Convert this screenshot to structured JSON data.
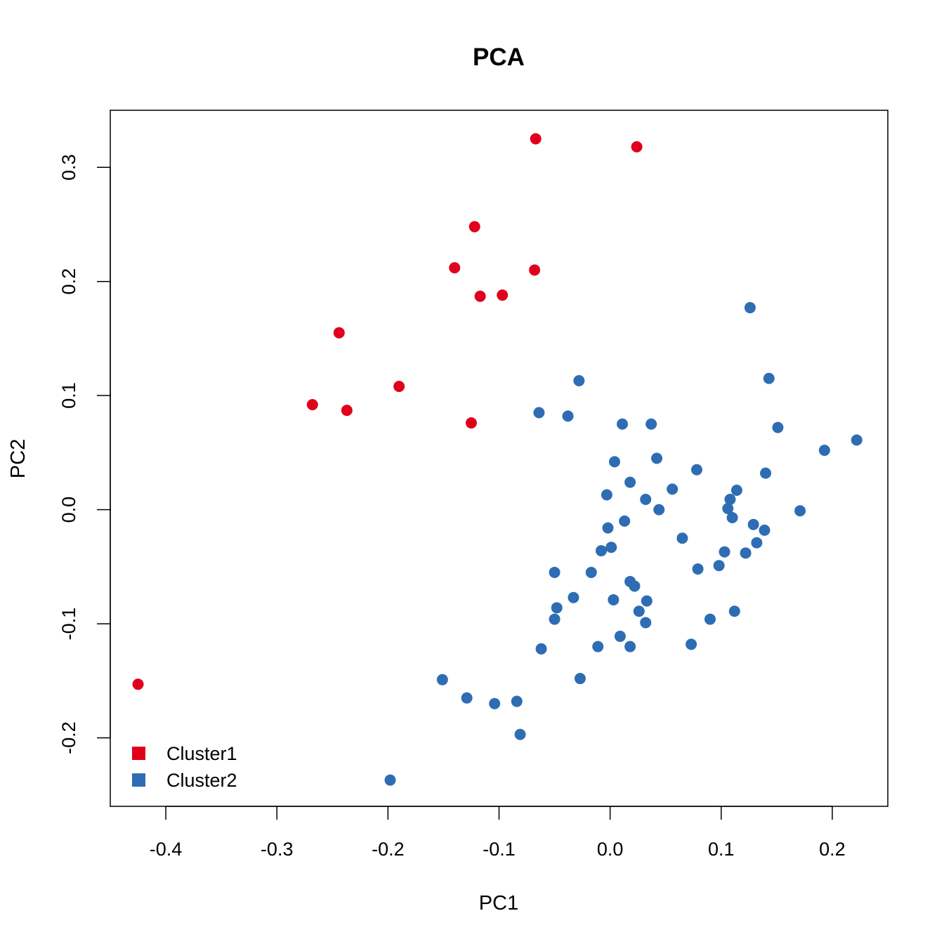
{
  "chart_data": {
    "type": "scatter",
    "title": "PCA",
    "xlabel": "PC1",
    "ylabel": "PC2",
    "xlim": [
      -0.45,
      0.25
    ],
    "ylim": [
      -0.26,
      0.35
    ],
    "xticks": [
      -0.4,
      -0.3,
      -0.2,
      -0.1,
      0.0,
      0.1,
      0.2
    ],
    "xtick_labels": [
      "-0.4",
      "-0.3",
      "-0.2",
      "-0.1",
      "0.0",
      "0.1",
      "0.2"
    ],
    "yticks": [
      -0.2,
      -0.1,
      0.0,
      0.1,
      0.2,
      0.3
    ],
    "ytick_labels": [
      "-0.2",
      "-0.1",
      "0.0",
      "0.1",
      "0.2",
      "0.3"
    ],
    "grid": false,
    "legend_position": "bottom-left",
    "series": [
      {
        "name": "Cluster1",
        "color": "#E0001B",
        "points": [
          [
            -0.067,
            0.325
          ],
          [
            0.024,
            0.318
          ],
          [
            -0.122,
            0.248
          ],
          [
            -0.14,
            0.212
          ],
          [
            -0.068,
            0.21
          ],
          [
            -0.117,
            0.187
          ],
          [
            -0.097,
            0.188
          ],
          [
            -0.244,
            0.155
          ],
          [
            -0.19,
            0.108
          ],
          [
            -0.268,
            0.092
          ],
          [
            -0.237,
            0.087
          ],
          [
            -0.125,
            0.076
          ],
          [
            -0.425,
            -0.153
          ]
        ]
      },
      {
        "name": "Cluster2",
        "color": "#2E6DB4",
        "points": [
          [
            0.126,
            0.177
          ],
          [
            0.143,
            0.115
          ],
          [
            -0.028,
            0.113
          ],
          [
            -0.064,
            0.085
          ],
          [
            -0.038,
            0.082
          ],
          [
            0.011,
            0.075
          ],
          [
            0.037,
            0.075
          ],
          [
            0.151,
            0.072
          ],
          [
            0.222,
            0.061
          ],
          [
            0.193,
            0.052
          ],
          [
            0.042,
            0.045
          ],
          [
            0.004,
            0.042
          ],
          [
            0.078,
            0.035
          ],
          [
            0.14,
            0.032
          ],
          [
            0.018,
            0.024
          ],
          [
            0.114,
            0.017
          ],
          [
            0.056,
            0.018
          ],
          [
            -0.003,
            0.013
          ],
          [
            0.032,
            0.009
          ],
          [
            0.108,
            0.009
          ],
          [
            0.106,
            0.001
          ],
          [
            0.044,
            0.0
          ],
          [
            0.171,
            -0.001
          ],
          [
            0.11,
            -0.007
          ],
          [
            0.013,
            -0.01
          ],
          [
            -0.002,
            -0.016
          ],
          [
            0.129,
            -0.013
          ],
          [
            0.139,
            -0.018
          ],
          [
            0.065,
            -0.025
          ],
          [
            0.132,
            -0.029
          ],
          [
            0.001,
            -0.033
          ],
          [
            -0.008,
            -0.036
          ],
          [
            0.103,
            -0.037
          ],
          [
            0.122,
            -0.038
          ],
          [
            0.098,
            -0.049
          ],
          [
            0.079,
            -0.052
          ],
          [
            -0.05,
            -0.055
          ],
          [
            -0.017,
            -0.055
          ],
          [
            0.018,
            -0.063
          ],
          [
            0.022,
            -0.067
          ],
          [
            -0.033,
            -0.077
          ],
          [
            0.003,
            -0.079
          ],
          [
            0.033,
            -0.08
          ],
          [
            -0.048,
            -0.086
          ],
          [
            0.026,
            -0.089
          ],
          [
            0.112,
            -0.089
          ],
          [
            -0.05,
            -0.096
          ],
          [
            0.09,
            -0.096
          ],
          [
            0.032,
            -0.099
          ],
          [
            0.009,
            -0.111
          ],
          [
            -0.011,
            -0.12
          ],
          [
            0.018,
            -0.12
          ],
          [
            0.073,
            -0.118
          ],
          [
            -0.062,
            -0.122
          ],
          [
            -0.151,
            -0.149
          ],
          [
            -0.027,
            -0.148
          ],
          [
            -0.129,
            -0.165
          ],
          [
            -0.104,
            -0.17
          ],
          [
            -0.084,
            -0.168
          ],
          [
            -0.081,
            -0.197
          ],
          [
            -0.198,
            -0.237
          ]
        ]
      }
    ]
  }
}
